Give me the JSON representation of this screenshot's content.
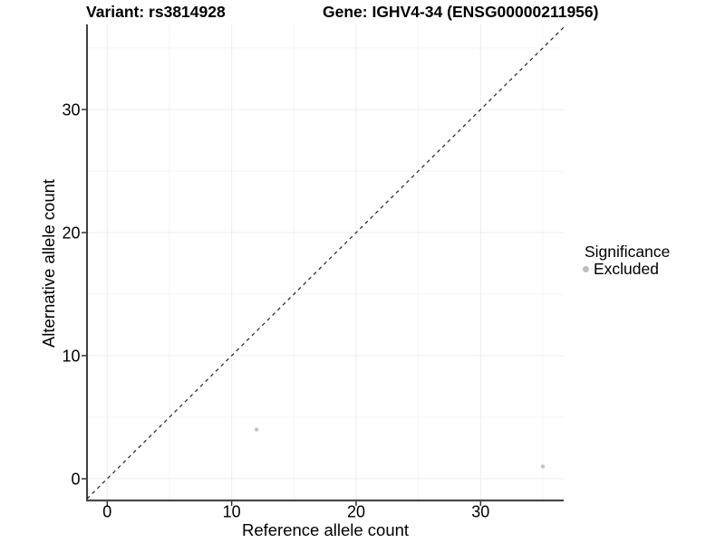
{
  "chart_data": {
    "type": "scatter",
    "titles": {
      "left": "Variant: rs3814928",
      "right": "Gene: IGHV4-34 (ENSG00000211956)"
    },
    "xlabel": "Reference allele count",
    "ylabel": "Alternative allele count",
    "x_ticks": [
      0,
      10,
      20,
      30
    ],
    "y_ticks": [
      0,
      10,
      20,
      30
    ],
    "xlim": [
      -1.65,
      36.7
    ],
    "ylim": [
      -1.8,
      36.9
    ],
    "grid": "major and minor gridlines, light grey on white",
    "legend_position": "right",
    "identity_line": {
      "equation": "y = x",
      "style": "dashed",
      "color": "#222222"
    },
    "series": [
      {
        "name": "Excluded",
        "color": "#c3c3c3",
        "points": [
          {
            "x": 12,
            "y": 4
          },
          {
            "x": 35,
            "y": 1
          }
        ]
      }
    ],
    "legend": {
      "title": "Significance",
      "items": [
        {
          "label": "Excluded",
          "color": "#bebebe"
        }
      ]
    }
  },
  "colors": {
    "background": "#ffffff",
    "grid_major": "#ececec",
    "grid_minor": "#f5f5f5",
    "axis_line_left": "#1f1f1f",
    "axis_line_bottom": "#474747",
    "tick_mark": "#333333",
    "text": "#000000"
  }
}
